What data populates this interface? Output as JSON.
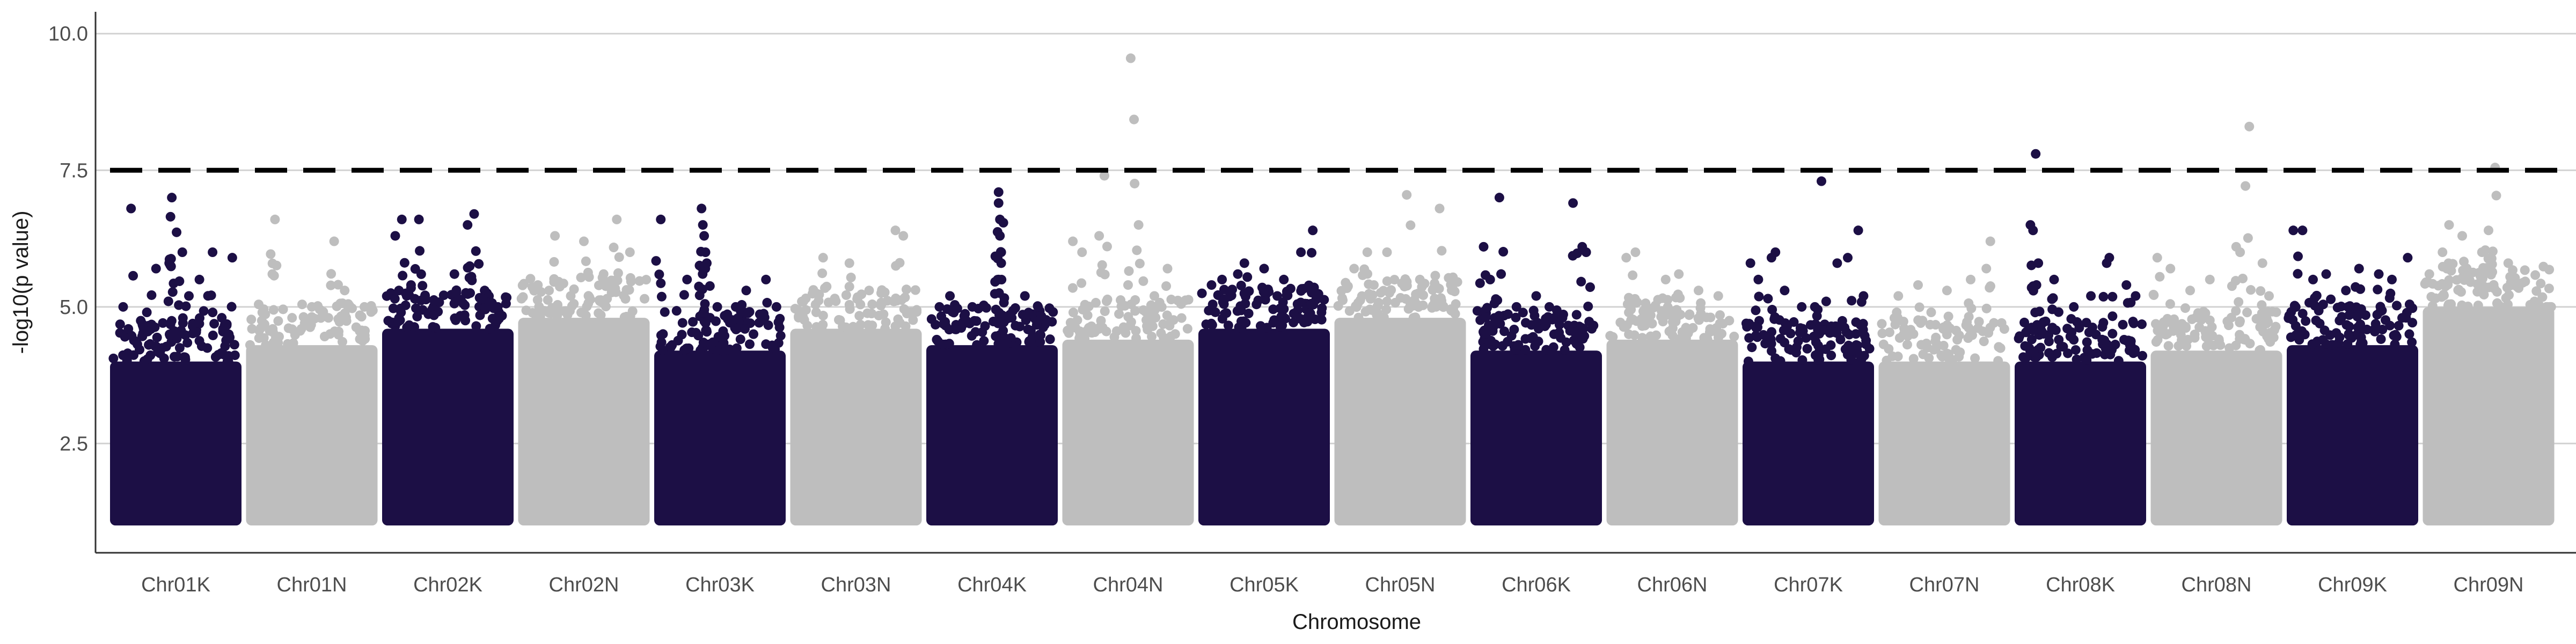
{
  "chart_data": {
    "type": "scatter",
    "title": "",
    "xlabel": "Chromosome",
    "ylabel": "-log10(p value)",
    "ylim": [
      0.5,
      10.4
    ],
    "yticks": [
      2.5,
      5.0,
      7.5,
      10.0
    ],
    "ytick_labels": [
      "2.5",
      "5.0",
      "7.5",
      "10.0"
    ],
    "grid": "horizontal major",
    "legend": "none",
    "threshold": 7.5,
    "colors": {
      "dark": "#1c0f45",
      "light": "#bebebe",
      "threshold": "#000000"
    },
    "chromosomes": [
      {
        "name": "Chr01K",
        "color": "dark",
        "base_top": 4.0,
        "points": [
          [
            0.1,
            5.0
          ],
          [
            0.16,
            6.8
          ],
          [
            0.35,
            5.7
          ],
          [
            0.45,
            5.8
          ],
          [
            0.46,
            6.65
          ],
          [
            0.47,
            7.0
          ],
          [
            0.55,
            6.0
          ],
          [
            0.68,
            5.5
          ],
          [
            0.78,
            6.0
          ],
          [
            0.93,
            5.9
          ],
          [
            0.28,
            4.9
          ],
          [
            0.6,
            5.2
          ],
          [
            0.85,
            4.8
          ]
        ]
      },
      {
        "name": "Chr01N",
        "color": "light",
        "base_top": 4.3,
        "points": [
          [
            0.2,
            5.6
          ],
          [
            0.22,
            6.6
          ],
          [
            0.5,
            5.0
          ],
          [
            0.67,
            6.2
          ],
          [
            0.75,
            5.3
          ],
          [
            0.9,
            5.0
          ],
          [
            0.35,
            4.8
          ]
        ]
      },
      {
        "name": "Chr02K",
        "color": "dark",
        "base_top": 4.6,
        "points": [
          [
            0.1,
            6.3
          ],
          [
            0.15,
            6.6
          ],
          [
            0.28,
            6.6
          ],
          [
            0.22,
            5.4
          ],
          [
            0.55,
            5.6
          ],
          [
            0.65,
            6.5
          ],
          [
            0.7,
            6.7
          ],
          [
            0.78,
            5.3
          ],
          [
            0.88,
            5.0
          ],
          [
            0.4,
            5.1
          ]
        ]
      },
      {
        "name": "Chr02N",
        "color": "light",
        "base_top": 4.8,
        "points": [
          [
            0.28,
            6.3
          ],
          [
            0.5,
            6.2
          ],
          [
            0.75,
            6.6
          ],
          [
            0.85,
            6.0
          ],
          [
            0.65,
            5.6
          ],
          [
            0.15,
            5.4
          ],
          [
            0.4,
            5.2
          ]
        ]
      },
      {
        "name": "Chr03K",
        "color": "dark",
        "base_top": 4.2,
        "points": [
          [
            0.05,
            6.6
          ],
          [
            0.25,
            5.5
          ],
          [
            0.36,
            6.8
          ],
          [
            0.37,
            6.5
          ],
          [
            0.38,
            6.3
          ],
          [
            0.39,
            6.0
          ],
          [
            0.4,
            5.8
          ],
          [
            0.48,
            5.0
          ],
          [
            0.62,
            5.0
          ],
          [
            0.7,
            5.3
          ],
          [
            0.85,
            5.5
          ],
          [
            0.93,
            5.0
          ]
        ]
      },
      {
        "name": "Chr03N",
        "color": "light",
        "base_top": 4.6,
        "points": [
          [
            0.25,
            5.9
          ],
          [
            0.45,
            5.8
          ],
          [
            0.8,
            6.4
          ],
          [
            0.86,
            6.3
          ],
          [
            0.6,
            5.3
          ],
          [
            0.1,
            5.1
          ]
        ]
      },
      {
        "name": "Chr04K",
        "color": "dark",
        "base_top": 4.3,
        "points": [
          [
            0.1,
            5.0
          ],
          [
            0.18,
            5.2
          ],
          [
            0.35,
            5.0
          ],
          [
            0.55,
            7.1
          ],
          [
            0.55,
            6.9
          ],
          [
            0.56,
            6.6
          ],
          [
            0.56,
            6.3
          ],
          [
            0.57,
            6.0
          ],
          [
            0.57,
            5.8
          ],
          [
            0.55,
            5.5
          ],
          [
            0.75,
            5.2
          ],
          [
            0.85,
            5.0
          ],
          [
            0.65,
            4.8
          ]
        ]
      },
      {
        "name": "Chr04N",
        "color": "light",
        "base_top": 4.4,
        "points": [
          [
            0.08,
            6.2
          ],
          [
            0.15,
            6.0
          ],
          [
            0.28,
            6.3
          ],
          [
            0.32,
            7.4
          ],
          [
            0.52,
            9.55
          ],
          [
            0.58,
            6.5
          ],
          [
            0.8,
            5.7
          ],
          [
            0.5,
            5.4
          ],
          [
            0.7,
            5.2
          ]
        ]
      },
      {
        "name": "Chr05K",
        "color": "dark",
        "base_top": 4.6,
        "points": [
          [
            0.1,
            5.4
          ],
          [
            0.18,
            5.5
          ],
          [
            0.3,
            5.6
          ],
          [
            0.35,
            5.8
          ],
          [
            0.5,
            5.7
          ],
          [
            0.65,
            5.5
          ],
          [
            0.78,
            6.0
          ],
          [
            0.87,
            6.4
          ],
          [
            0.6,
            5.2
          ]
        ]
      },
      {
        "name": "Chr05N",
        "color": "light",
        "base_top": 4.8,
        "points": [
          [
            0.15,
            5.7
          ],
          [
            0.25,
            6.0
          ],
          [
            0.4,
            6.0
          ],
          [
            0.55,
            7.05
          ],
          [
            0.65,
            5.5
          ],
          [
            0.8,
            6.8
          ],
          [
            0.9,
            5.3
          ],
          [
            0.3,
            5.4
          ]
        ]
      },
      {
        "name": "Chr06K",
        "color": "dark",
        "base_top": 4.2,
        "points": [
          [
            0.1,
            6.1
          ],
          [
            0.15,
            5.5
          ],
          [
            0.22,
            7.0
          ],
          [
            0.35,
            5.0
          ],
          [
            0.5,
            5.2
          ],
          [
            0.6,
            5.0
          ],
          [
            0.78,
            6.9
          ],
          [
            0.85,
            6.1
          ],
          [
            0.88,
            6.0
          ],
          [
            0.7,
            4.8
          ]
        ]
      },
      {
        "name": "Chr06N",
        "color": "light",
        "base_top": 4.4,
        "points": [
          [
            0.15,
            5.9
          ],
          [
            0.22,
            6.0
          ],
          [
            0.45,
            5.5
          ],
          [
            0.55,
            5.6
          ],
          [
            0.7,
            5.3
          ],
          [
            0.85,
            5.2
          ],
          [
            0.3,
            5.0
          ]
        ]
      },
      {
        "name": "Chr07K",
        "color": "dark",
        "base_top": 4.0,
        "points": [
          [
            0.06,
            5.8
          ],
          [
            0.12,
            5.5
          ],
          [
            0.22,
            5.9
          ],
          [
            0.25,
            6.0
          ],
          [
            0.32,
            5.3
          ],
          [
            0.45,
            5.0
          ],
          [
            0.55,
            5.0
          ],
          [
            0.6,
            7.3
          ],
          [
            0.72,
            5.8
          ],
          [
            0.8,
            5.9
          ],
          [
            0.88,
            6.4
          ],
          [
            0.92,
            5.2
          ]
        ]
      },
      {
        "name": "Chr07N",
        "color": "light",
        "base_top": 4.0,
        "points": [
          [
            0.15,
            5.2
          ],
          [
            0.3,
            5.4
          ],
          [
            0.52,
            5.3
          ],
          [
            0.7,
            5.5
          ],
          [
            0.85,
            6.2
          ],
          [
            0.4,
            4.9
          ]
        ]
      },
      {
        "name": "Chr08K",
        "color": "dark",
        "base_top": 4.0,
        "points": [
          [
            0.12,
            6.5
          ],
          [
            0.14,
            6.4
          ],
          [
            0.16,
            7.8
          ],
          [
            0.18,
            5.8
          ],
          [
            0.3,
            5.5
          ],
          [
            0.45,
            5.0
          ],
          [
            0.58,
            5.2
          ],
          [
            0.7,
            5.8
          ],
          [
            0.72,
            5.9
          ],
          [
            0.85,
            5.4
          ],
          [
            0.92,
            5.2
          ]
        ]
      },
      {
        "name": "Chr08N",
        "color": "light",
        "base_top": 4.2,
        "points": [
          [
            0.05,
            5.9
          ],
          [
            0.15,
            5.7
          ],
          [
            0.3,
            5.3
          ],
          [
            0.45,
            5.5
          ],
          [
            0.65,
            6.1
          ],
          [
            0.68,
            6.0
          ],
          [
            0.75,
            8.3
          ],
          [
            0.85,
            5.8
          ],
          [
            0.9,
            5.2
          ]
        ]
      },
      {
        "name": "Chr09K",
        "color": "dark",
        "base_top": 4.3,
        "points": [
          [
            0.05,
            6.4
          ],
          [
            0.12,
            6.4
          ],
          [
            0.2,
            5.5
          ],
          [
            0.3,
            5.6
          ],
          [
            0.45,
            5.3
          ],
          [
            0.55,
            5.7
          ],
          [
            0.7,
            5.6
          ],
          [
            0.8,
            5.5
          ],
          [
            0.92,
            5.9
          ]
        ]
      },
      {
        "name": "Chr09N",
        "color": "light",
        "base_top": 5.0,
        "points": [
          [
            0.05,
            5.6
          ],
          [
            0.15,
            6.0
          ],
          [
            0.2,
            6.5
          ],
          [
            0.3,
            6.3
          ],
          [
            0.45,
            6.0
          ],
          [
            0.5,
            6.4
          ],
          [
            0.55,
            7.55
          ],
          [
            0.65,
            5.8
          ],
          [
            0.85,
            5.1
          ],
          [
            0.95,
            5.0
          ]
        ]
      }
    ]
  }
}
